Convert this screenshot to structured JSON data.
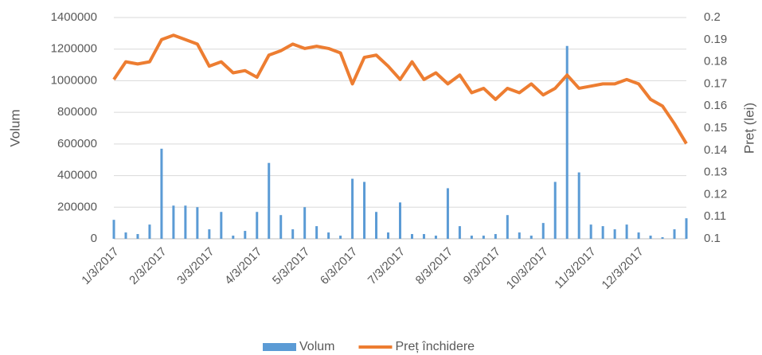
{
  "chart_data": {
    "type": "bar-line",
    "categories": [
      "1/3/2017",
      null,
      null,
      null,
      "2/3/2017",
      null,
      null,
      null,
      "3/3/2017",
      null,
      null,
      null,
      "4/3/2017",
      null,
      null,
      null,
      "5/3/2017",
      null,
      null,
      null,
      "6/3/2017",
      null,
      null,
      null,
      "7/3/2017",
      null,
      null,
      null,
      "8/3/2017",
      null,
      null,
      null,
      "9/3/2017",
      null,
      null,
      null,
      "10/3/2017",
      null,
      null,
      null,
      "11/3/2017",
      null,
      null,
      null,
      "12/3/2017",
      null,
      null,
      null,
      null
    ],
    "series": [
      {
        "name": "Volum",
        "color": "#5b9bd5",
        "axis": "y",
        "values": [
          120000,
          40000,
          30000,
          90000,
          570000,
          210000,
          210000,
          200000,
          60000,
          170000,
          20000,
          50000,
          170000,
          480000,
          150000,
          60000,
          200000,
          80000,
          40000,
          20000,
          380000,
          360000,
          170000,
          40000,
          230000,
          30000,
          30000,
          20000,
          320000,
          80000,
          20000,
          20000,
          30000,
          150000,
          40000,
          20000,
          100000,
          360000,
          1220000,
          420000,
          90000,
          80000,
          60000,
          90000,
          40000,
          20000,
          10000,
          60000,
          130000
        ]
      },
      {
        "name": "Preț închidere",
        "color": "#ed7d31",
        "axis": "y2",
        "values": [
          0.172,
          0.18,
          0.179,
          0.18,
          0.19,
          0.192,
          0.19,
          0.188,
          0.178,
          0.18,
          0.175,
          0.176,
          0.173,
          0.183,
          0.185,
          0.188,
          0.186,
          0.187,
          0.186,
          0.184,
          0.17,
          0.182,
          0.183,
          0.178,
          0.172,
          0.18,
          0.172,
          0.175,
          0.17,
          0.174,
          0.166,
          0.168,
          0.163,
          0.168,
          0.166,
          0.17,
          0.165,
          0.168,
          0.174,
          0.168,
          0.169,
          0.17,
          0.17,
          0.172,
          0.17,
          0.163,
          0.16,
          0.152,
          0.143
        ]
      }
    ],
    "ylabel": "Volum",
    "y2label": "Preț (lei)",
    "ylim": [
      0,
      1400000
    ],
    "yticks": [
      0,
      200000,
      400000,
      600000,
      800000,
      1000000,
      1200000,
      1400000
    ],
    "y2lim": [
      0.1,
      0.2
    ],
    "y2ticks": [
      0.1,
      0.11,
      0.12,
      0.13,
      0.14,
      0.15,
      0.16,
      0.17,
      0.18,
      0.19,
      0.2
    ],
    "grid": true,
    "legend": "bottom"
  }
}
